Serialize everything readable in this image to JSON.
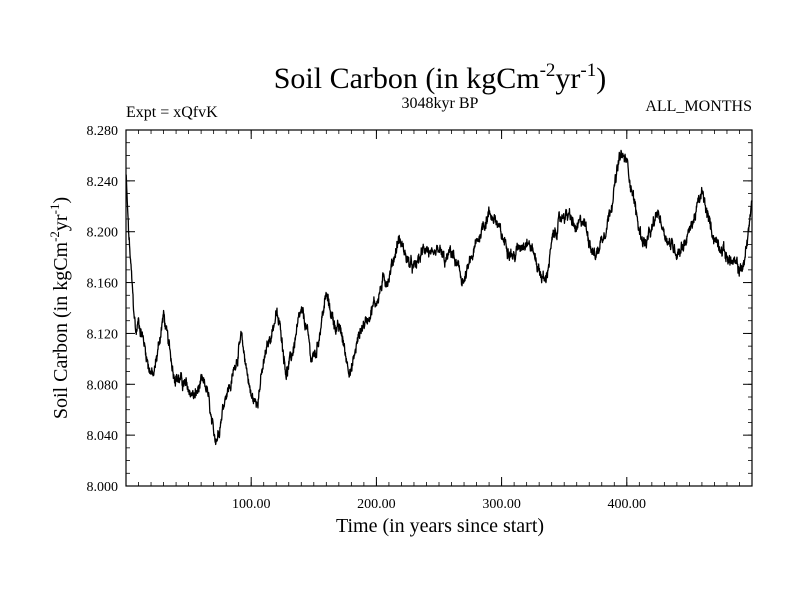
{
  "colors": {
    "line": "#000000",
    "axis": "#000000",
    "background": "#ffffff"
  },
  "chart_data": {
    "type": "line",
    "title": {
      "base": "Soil Carbon (in kgCm",
      "sup1": "-2",
      "mid": "yr",
      "sup2": "-1",
      "end": ")"
    },
    "subtitle_left": "Expt = xQfvK",
    "subtitle_center": "3048kyr BP",
    "subtitle_right": "ALL_MONTHS",
    "xlabel": "Time (in years since start)",
    "ylabel": {
      "base": "Soil Carbon (in kgCm",
      "sup1": "-2",
      "mid": "yr",
      "sup2": "-1",
      "end": ")"
    },
    "xlim": [
      0,
      500
    ],
    "ylim": [
      8.0,
      8.28
    ],
    "xticks": [
      {
        "value": 100,
        "label": "100.00"
      },
      {
        "value": 200,
        "label": "200.00"
      },
      {
        "value": 300,
        "label": "300.00"
      },
      {
        "value": 400,
        "label": "400.00"
      }
    ],
    "yticks": [
      {
        "value": 8.0,
        "label": "8.000"
      },
      {
        "value": 8.04,
        "label": "8.040"
      },
      {
        "value": 8.08,
        "label": "8.080"
      },
      {
        "value": 8.12,
        "label": "8.120"
      },
      {
        "value": 8.16,
        "label": "8.160"
      },
      {
        "value": 8.2,
        "label": "8.200"
      },
      {
        "value": 8.24,
        "label": "8.240"
      },
      {
        "value": 8.28,
        "label": "8.280"
      }
    ],
    "x_minor_step": 10,
    "y_minor_step": 0.01,
    "noise_amplitude": 0.006,
    "series": [
      {
        "name": "Soil Carbon",
        "points": [
          [
            0,
            8.245
          ],
          [
            2,
            8.2
          ],
          [
            4,
            8.17
          ],
          [
            6,
            8.14
          ],
          [
            8,
            8.12
          ],
          [
            10,
            8.13
          ],
          [
            14,
            8.115
          ],
          [
            18,
            8.095
          ],
          [
            22,
            8.085
          ],
          [
            26,
            8.11
          ],
          [
            30,
            8.135
          ],
          [
            34,
            8.11
          ],
          [
            38,
            8.09
          ],
          [
            42,
            8.085
          ],
          [
            46,
            8.08
          ],
          [
            50,
            8.075
          ],
          [
            55,
            8.07
          ],
          [
            60,
            8.08
          ],
          [
            65,
            8.075
          ],
          [
            68,
            8.05
          ],
          [
            70,
            8.038
          ],
          [
            73,
            8.04
          ],
          [
            76,
            8.055
          ],
          [
            80,
            8.075
          ],
          [
            84,
            8.08
          ],
          [
            88,
            8.1
          ],
          [
            92,
            8.115
          ],
          [
            96,
            8.095
          ],
          [
            100,
            8.07
          ],
          [
            104,
            8.065
          ],
          [
            108,
            8.085
          ],
          [
            112,
            8.105
          ],
          [
            116,
            8.12
          ],
          [
            120,
            8.135
          ],
          [
            124,
            8.12
          ],
          [
            128,
            8.09
          ],
          [
            132,
            8.1
          ],
          [
            136,
            8.12
          ],
          [
            140,
            8.135
          ],
          [
            144,
            8.125
          ],
          [
            148,
            8.1
          ],
          [
            152,
            8.105
          ],
          [
            156,
            8.13
          ],
          [
            160,
            8.15
          ],
          [
            164,
            8.135
          ],
          [
            168,
            8.125
          ],
          [
            172,
            8.12
          ],
          [
            176,
            8.1
          ],
          [
            180,
            8.09
          ],
          [
            184,
            8.11
          ],
          [
            188,
            8.125
          ],
          [
            192,
            8.13
          ],
          [
            196,
            8.14
          ],
          [
            200,
            8.145
          ],
          [
            205,
            8.16
          ],
          [
            210,
            8.165
          ],
          [
            214,
            8.18
          ],
          [
            218,
            8.195
          ],
          [
            222,
            8.185
          ],
          [
            226,
            8.175
          ],
          [
            230,
            8.17
          ],
          [
            235,
            8.18
          ],
          [
            240,
            8.19
          ],
          [
            245,
            8.175
          ],
          [
            250,
            8.185
          ],
          [
            255,
            8.175
          ],
          [
            260,
            8.185
          ],
          [
            265,
            8.17
          ],
          [
            270,
            8.16
          ],
          [
            275,
            8.175
          ],
          [
            280,
            8.19
          ],
          [
            285,
            8.205
          ],
          [
            290,
            8.215
          ],
          [
            295,
            8.21
          ],
          [
            300,
            8.195
          ],
          [
            305,
            8.19
          ],
          [
            310,
            8.18
          ],
          [
            315,
            8.19
          ],
          [
            320,
            8.195
          ],
          [
            325,
            8.185
          ],
          [
            330,
            8.17
          ],
          [
            335,
            8.16
          ],
          [
            340,
            8.19
          ],
          [
            345,
            8.205
          ],
          [
            350,
            8.215
          ],
          [
            355,
            8.21
          ],
          [
            360,
            8.2
          ],
          [
            365,
            8.21
          ],
          [
            370,
            8.195
          ],
          [
            375,
            8.18
          ],
          [
            380,
            8.195
          ],
          [
            385,
            8.21
          ],
          [
            390,
            8.235
          ],
          [
            395,
            8.26
          ],
          [
            400,
            8.255
          ],
          [
            405,
            8.23
          ],
          [
            410,
            8.2
          ],
          [
            415,
            8.19
          ],
          [
            420,
            8.2
          ],
          [
            425,
            8.215
          ],
          [
            430,
            8.2
          ],
          [
            435,
            8.19
          ],
          [
            440,
            8.185
          ],
          [
            445,
            8.19
          ],
          [
            450,
            8.2
          ],
          [
            455,
            8.215
          ],
          [
            460,
            8.23
          ],
          [
            465,
            8.21
          ],
          [
            470,
            8.195
          ],
          [
            475,
            8.19
          ],
          [
            480,
            8.18
          ],
          [
            485,
            8.175
          ],
          [
            490,
            8.17
          ],
          [
            494,
            8.175
          ],
          [
            497,
            8.2
          ],
          [
            500,
            8.225
          ]
        ]
      }
    ]
  }
}
